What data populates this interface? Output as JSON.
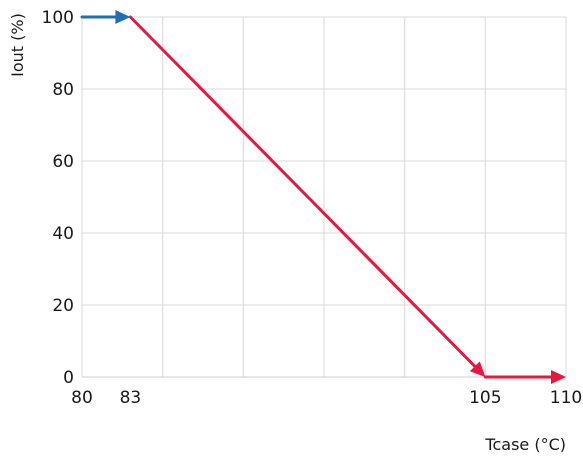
{
  "chart_data": {
    "type": "line",
    "title": "",
    "xlabel": "Tcase (°C)",
    "ylabel": "Iout (%)",
    "xlim": [
      80,
      110
    ],
    "ylim": [
      0,
      100
    ],
    "x_ticks": [
      80,
      83,
      105,
      110
    ],
    "y_ticks": [
      0,
      20,
      40,
      60,
      80,
      100
    ],
    "grid": true,
    "series": [
      {
        "points": [
          [
            80,
            100
          ],
          [
            83,
            100
          ]
        ],
        "color": "#1f6fb8"
      },
      {
        "points": [
          [
            83,
            100
          ],
          [
            105,
            0
          ],
          [
            110,
            0
          ]
        ],
        "color": "#e8173f"
      }
    ]
  }
}
